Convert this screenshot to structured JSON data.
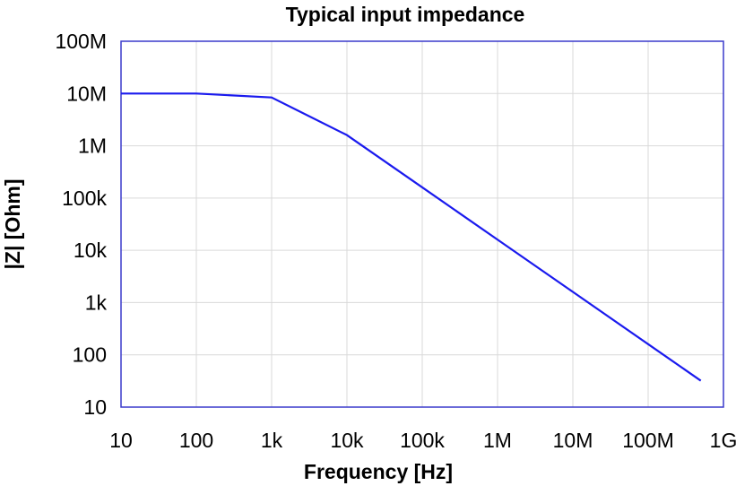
{
  "chart_data": {
    "type": "line",
    "title": "Typical input impedance",
    "xlabel": "Frequency [Hz]",
    "ylabel": "|Z| [Ohm]",
    "x_scale": "log",
    "y_scale": "log",
    "xlim": [
      10,
      1000000000
    ],
    "ylim": [
      10,
      100000000
    ],
    "grid": true,
    "legend": "none",
    "x_ticks": [
      {
        "value": 10,
        "label": "10"
      },
      {
        "value": 100,
        "label": "100"
      },
      {
        "value": 1000,
        "label": "1k"
      },
      {
        "value": 10000,
        "label": "10k"
      },
      {
        "value": 100000,
        "label": "100k"
      },
      {
        "value": 1000000,
        "label": "1M"
      },
      {
        "value": 10000000,
        "label": "10M"
      },
      {
        "value": 100000000,
        "label": "100M"
      },
      {
        "value": 1000000000,
        "label": "1G"
      }
    ],
    "y_ticks": [
      {
        "value": 10,
        "label": "10"
      },
      {
        "value": 100,
        "label": "100"
      },
      {
        "value": 1000,
        "label": "1k"
      },
      {
        "value": 10000,
        "label": "10k"
      },
      {
        "value": 100000,
        "label": "100k"
      },
      {
        "value": 1000000,
        "label": "1M"
      },
      {
        "value": 10000000,
        "label": "10M"
      },
      {
        "value": 100000000,
        "label": "100M"
      }
    ],
    "series": [
      {
        "color": "#1a1aee",
        "x": [
          10,
          100,
          1000,
          10000,
          100000,
          1000000,
          10000000,
          100000000,
          500000000
        ],
        "y": [
          10000000,
          10000000,
          8400000,
          1600000,
          160000,
          16000,
          1600,
          160,
          32
        ]
      }
    ]
  },
  "colors": {
    "plot_border": "#3a3acc",
    "grid": "#d9d9d9",
    "line": "#1a1aee"
  }
}
